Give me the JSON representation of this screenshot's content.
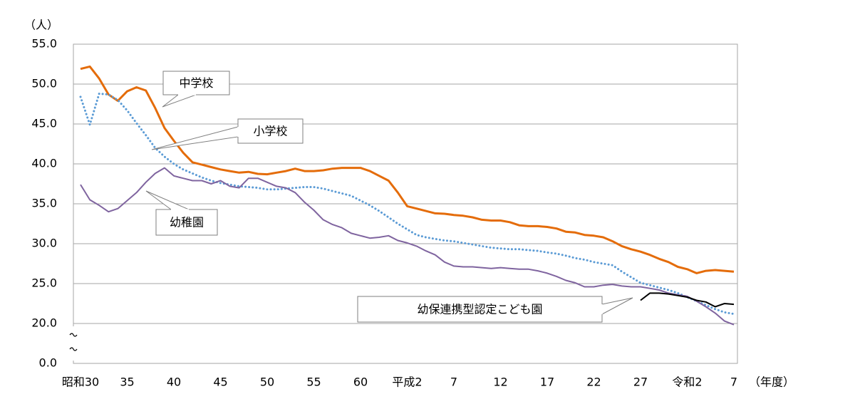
{
  "chart_data": {
    "type": "line",
    "y_label": "（人）",
    "x_label": "（年度）",
    "categories": [
      "昭和30",
      null,
      null,
      null,
      null,
      "35",
      null,
      null,
      null,
      null,
      "40",
      null,
      null,
      null,
      null,
      "45",
      null,
      null,
      null,
      null,
      "50",
      null,
      null,
      null,
      null,
      "55",
      null,
      null,
      null,
      null,
      "60",
      null,
      null,
      null,
      null,
      "平成2",
      null,
      null,
      null,
      null,
      "7",
      null,
      null,
      null,
      null,
      "12",
      null,
      null,
      null,
      null,
      "17",
      null,
      null,
      null,
      null,
      "22",
      null,
      null,
      null,
      null,
      "27",
      null,
      null,
      null,
      null,
      "令和2",
      null,
      null,
      null,
      null,
      "7"
    ],
    "ylim": [
      0,
      55
    ],
    "yticks": [
      {
        "value": 0,
        "label": "0.0"
      },
      {
        "value": 20,
        "label": "20.0"
      },
      {
        "value": 25,
        "label": "25.0"
      },
      {
        "value": 30,
        "label": "30.0"
      },
      {
        "value": 35,
        "label": "35.0"
      },
      {
        "value": 40,
        "label": "40.0"
      },
      {
        "value": 45,
        "label": "45.0"
      },
      {
        "value": 50,
        "label": "50.0"
      },
      {
        "value": 55,
        "label": "55.0"
      }
    ],
    "broken_axis": true,
    "grid": true,
    "series": [
      {
        "name": "中学校",
        "color": "#e46c0a",
        "style": "solid",
        "values": [
          51.9,
          52.2,
          50.7,
          48.7,
          47.9,
          49.1,
          49.6,
          49.2,
          47.0,
          44.5,
          42.9,
          41.4,
          40.2,
          39.9,
          39.6,
          39.3,
          39.1,
          38.9,
          39.0,
          38.75,
          38.7,
          38.9,
          39.1,
          39.4,
          39.1,
          39.1,
          39.2,
          39.4,
          39.5,
          39.5,
          39.5,
          39.1,
          38.5,
          37.9,
          36.4,
          34.7,
          34.4,
          34.1,
          33.8,
          33.75,
          33.6,
          33.5,
          33.3,
          33.0,
          32.9,
          32.9,
          32.7,
          32.3,
          32.2,
          32.2,
          32.1,
          31.9,
          31.5,
          31.4,
          31.1,
          31.0,
          30.8,
          30.3,
          29.7,
          29.3,
          29.0,
          28.6,
          28.1,
          27.7,
          27.1,
          26.8,
          26.3,
          26.6,
          26.7,
          26.6,
          26.5
        ]
      },
      {
        "name": "小学校",
        "color": "#5b9bd5",
        "style": "dotted",
        "values": [
          48.4,
          44.9,
          48.8,
          48.7,
          48.0,
          46.7,
          45.1,
          43.6,
          42.0,
          40.9,
          40.0,
          39.3,
          38.8,
          38.3,
          37.9,
          37.6,
          37.4,
          37.2,
          37.1,
          37.0,
          36.8,
          36.8,
          36.9,
          37.0,
          37.1,
          37.1,
          36.9,
          36.6,
          36.3,
          36.0,
          35.4,
          34.8,
          34.1,
          33.3,
          32.5,
          31.8,
          31.1,
          30.8,
          30.6,
          30.4,
          30.3,
          30.1,
          29.9,
          29.7,
          29.5,
          29.4,
          29.3,
          29.3,
          29.2,
          29.1,
          28.9,
          28.75,
          28.5,
          28.2,
          28.0,
          27.7,
          27.5,
          27.3,
          26.5,
          25.8,
          25.1,
          24.8,
          24.5,
          24.2,
          23.8,
          23.3,
          22.8,
          22.3,
          21.8,
          21.4,
          21.2
        ]
      },
      {
        "name": "幼稚園",
        "color": "#7f649f",
        "style": "solid",
        "values": [
          37.4,
          35.5,
          34.8,
          34.0,
          34.4,
          35.4,
          36.4,
          37.7,
          38.8,
          39.5,
          38.5,
          38.2,
          37.9,
          37.9,
          37.5,
          37.9,
          37.2,
          37.0,
          38.2,
          38.2,
          37.7,
          37.2,
          37.0,
          36.4,
          35.2,
          34.2,
          33.0,
          32.4,
          32.0,
          31.3,
          31.0,
          30.7,
          30.8,
          31.0,
          30.4,
          30.1,
          29.7,
          29.1,
          28.6,
          27.7,
          27.2,
          27.1,
          27.1,
          27.0,
          26.9,
          27.0,
          26.9,
          26.8,
          26.8,
          26.6,
          26.3,
          25.9,
          25.4,
          25.1,
          24.6,
          24.6,
          24.8,
          24.9,
          24.7,
          24.6,
          24.6,
          24.4,
          24.2,
          23.8,
          23.6,
          23.4,
          22.8,
          22.1,
          21.3,
          20.3,
          19.4
        ]
      },
      {
        "name": "幼保連携型認定こども園",
        "color": "#000000",
        "style": "solid",
        "values": [
          null,
          null,
          null,
          null,
          null,
          null,
          null,
          null,
          null,
          null,
          null,
          null,
          null,
          null,
          null,
          null,
          null,
          null,
          null,
          null,
          null,
          null,
          null,
          null,
          null,
          null,
          null,
          null,
          null,
          null,
          null,
          null,
          null,
          null,
          null,
          null,
          null,
          null,
          null,
          null,
          null,
          null,
          null,
          null,
          null,
          null,
          null,
          null,
          null,
          null,
          null,
          null,
          null,
          null,
          null,
          null,
          null,
          null,
          null,
          null,
          22.9,
          23.8,
          23.8,
          23.7,
          23.5,
          23.3,
          22.9,
          22.7,
          22.1,
          22.5,
          22.4
        ]
      }
    ]
  }
}
